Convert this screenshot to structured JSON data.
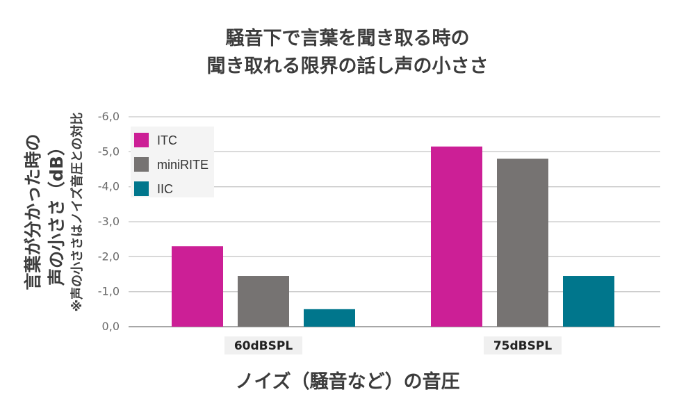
{
  "chart_data": {
    "type": "bar",
    "title_lines": [
      "騒音下で言葉を聞き取る時の",
      "聞き取れる限界の話し声の小ささ"
    ],
    "ylabel_lines": [
      "言葉が分かった時の",
      "声の小ささ（dB）"
    ],
    "ylabel_note": "※声の小ささはノイズ音圧との対比",
    "xlabel": "ノイズ（騒音など）の音圧",
    "categories": [
      "60dBSPL",
      "75dBSPL"
    ],
    "series": [
      {
        "name": "ITC",
        "color": "#cc1f96",
        "values": [
          -2.3,
          -5.15
        ]
      },
      {
        "name": "miniRITE",
        "color": "#767372",
        "values": [
          -1.45,
          -4.8
        ]
      },
      {
        "name": "IIC",
        "color": "#00768c",
        "values": [
          -0.5,
          -1.45
        ]
      }
    ],
    "yticks": [
      "-6,0",
      "-5,0",
      "-4,0",
      "-3,0",
      "-2,0",
      "-1,0",
      "0,0"
    ],
    "ylim": [
      0,
      -6
    ],
    "grid": true,
    "legend_position": "top-left"
  }
}
